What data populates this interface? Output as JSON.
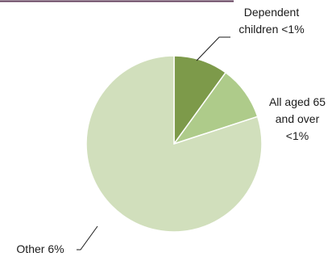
{
  "chart_data": {
    "type": "pie",
    "title": "",
    "slices": [
      {
        "label": "Dependent children <1%",
        "value": 10,
        "color": "#7d9a4a"
      },
      {
        "label": "All aged 65 and over <1%",
        "value": 10,
        "color": "#aecb8a"
      },
      {
        "label": "Other 6%",
        "value": 80,
        "color": "#d1dfbc"
      }
    ],
    "labels": {
      "dependent": [
        "Dependent",
        "children <1%"
      ],
      "aged": [
        "All aged 65",
        "and over",
        "<1%"
      ],
      "other": [
        "Other 6%"
      ]
    },
    "colors": {
      "top_rule": "#5e3a57",
      "slice_edge": "#ffffff",
      "leader": "#1a1a1a"
    }
  }
}
